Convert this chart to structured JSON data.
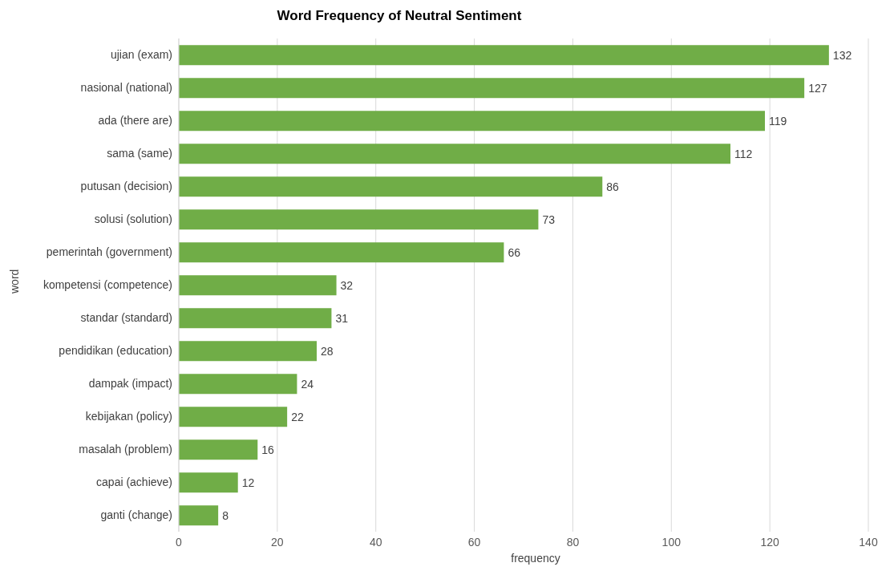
{
  "chart_data": {
    "type": "bar",
    "orientation": "horizontal",
    "title": "Word Frequency of Neutral Sentiment",
    "xlabel": "frequency",
    "ylabel": "word",
    "categories": [
      "ujian (exam)",
      "nasional (national)",
      "ada (there are)",
      "sama (same)",
      "putusan (decision)",
      "solusi (solution)",
      "pemerintah (government)",
      "kompetensi (competence)",
      "standar (standard)",
      "pendidikan (education)",
      "dampak (impact)",
      "kebijakan (policy)",
      "masalah (problem)",
      "capai (achieve)",
      "ganti (change)"
    ],
    "values": [
      132,
      127,
      119,
      112,
      86,
      73,
      66,
      32,
      31,
      28,
      24,
      22,
      16,
      12,
      8
    ],
    "color": "#70ad47",
    "xlim": [
      0,
      140
    ],
    "xticks": [
      0,
      20,
      40,
      60,
      80,
      100,
      120,
      140
    ],
    "grid": "x",
    "data_labels": true
  }
}
